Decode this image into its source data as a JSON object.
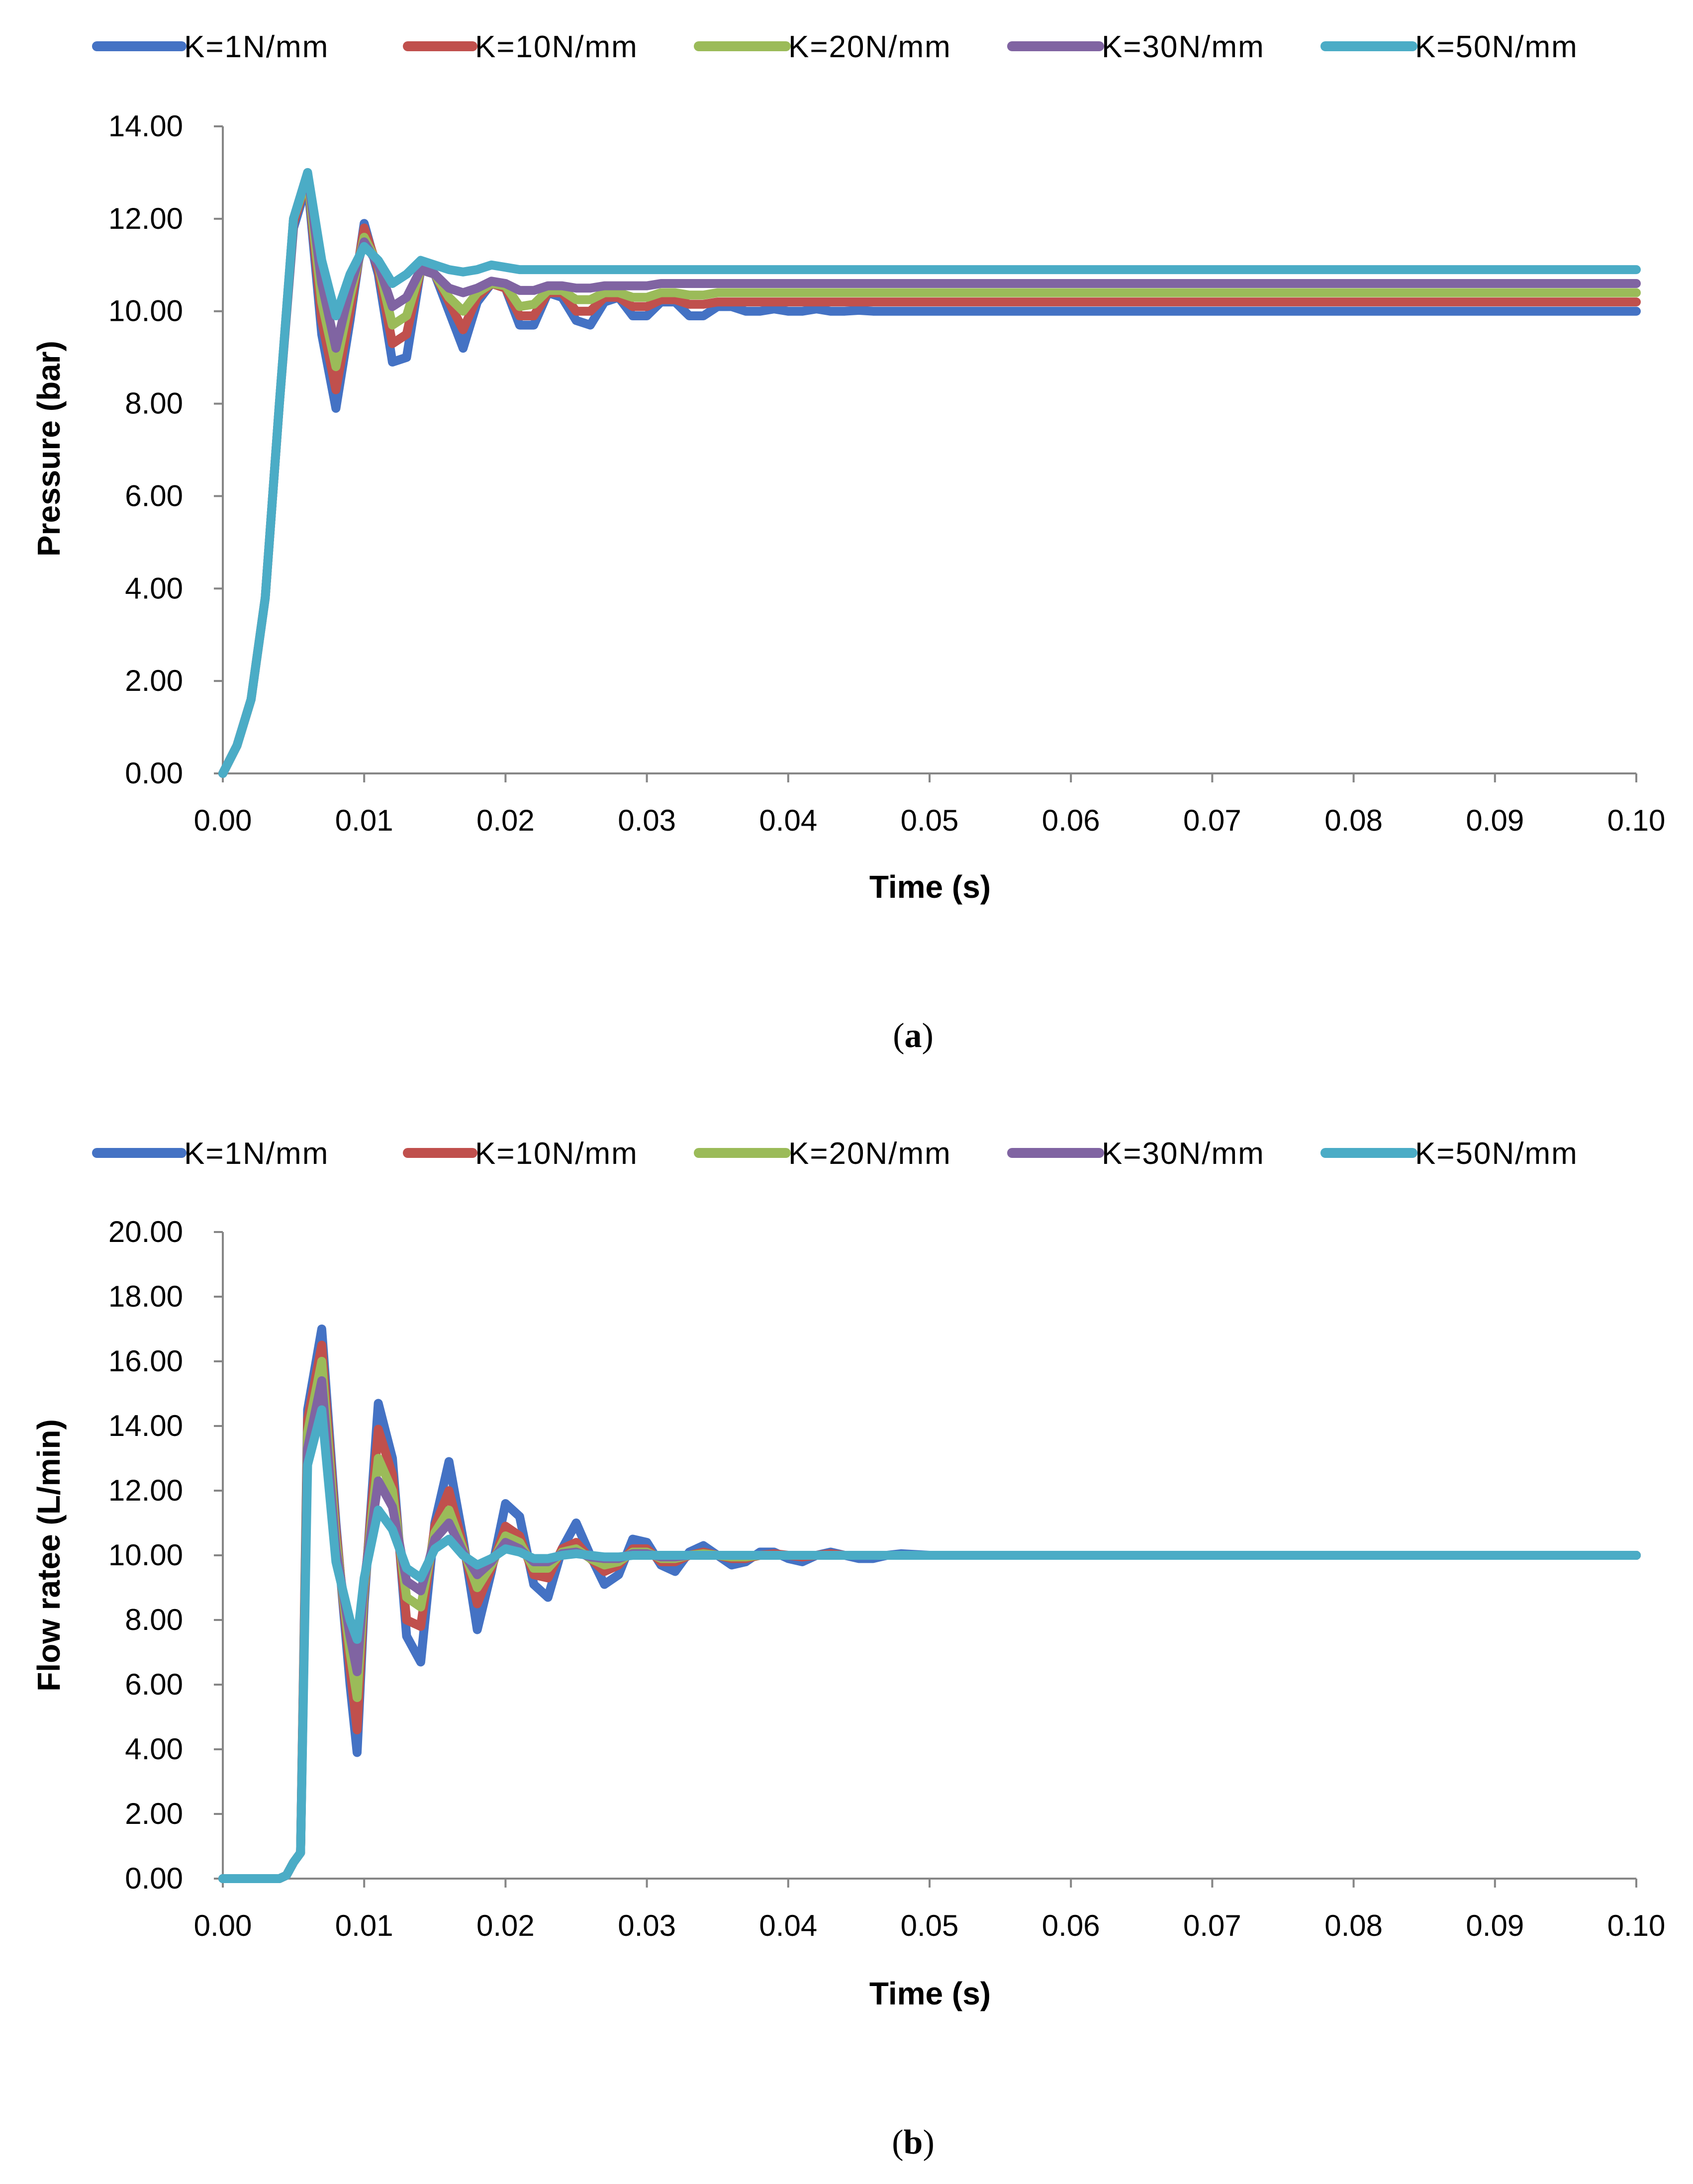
{
  "figure": {
    "panels": [
      "a",
      "b"
    ]
  },
  "colors": {
    "K1": "#4472C4",
    "K10": "#C0504D",
    "K20": "#9BBB59",
    "K30": "#8064A2",
    "K50": "#4BACC6"
  },
  "chart_data": [
    {
      "type": "line",
      "panel": "a",
      "caption": "a",
      "title": "",
      "xlabel": "Time (s)",
      "ylabel": "Pressure (bar)",
      "xlim": [
        0,
        0.1
      ],
      "ylim": [
        0,
        14
      ],
      "xticks": [
        "0.00",
        "0.01",
        "0.02",
        "0.03",
        "0.04",
        "0.05",
        "0.06",
        "0.07",
        "0.08",
        "0.09",
        "0.10"
      ],
      "yticks": [
        "0.00",
        "2.00",
        "4.00",
        "6.00",
        "8.00",
        "10.00",
        "12.00",
        "14.00"
      ],
      "legend_position": "top",
      "x": [
        0,
        0.001,
        0.002,
        0.003,
        0.004,
        0.005,
        0.006,
        0.007,
        0.008,
        0.009,
        0.01,
        0.011,
        0.012,
        0.013,
        0.014,
        0.015,
        0.016,
        0.017,
        0.018,
        0.019,
        0.02,
        0.021,
        0.022,
        0.023,
        0.024,
        0.025,
        0.026,
        0.027,
        0.028,
        0.029,
        0.03,
        0.031,
        0.032,
        0.033,
        0.034,
        0.035,
        0.036,
        0.037,
        0.038,
        0.039,
        0.04,
        0.041,
        0.042,
        0.043,
        0.044,
        0.045,
        0.046,
        0.047,
        0.048,
        0.05,
        0.06,
        0.07,
        0.08,
        0.09,
        0.1
      ],
      "series": [
        {
          "name": "K=1N/mm",
          "color_key": "K1",
          "values": [
            0,
            0.6,
            1.6,
            3.8,
            8.0,
            11.8,
            12.8,
            9.5,
            7.9,
            9.8,
            11.9,
            10.8,
            8.9,
            9.0,
            10.9,
            10.8,
            10.0,
            9.2,
            10.2,
            10.6,
            10.5,
            9.7,
            9.7,
            10.4,
            10.3,
            9.8,
            9.7,
            10.2,
            10.3,
            9.9,
            9.9,
            10.2,
            10.2,
            9.9,
            9.9,
            10.1,
            10.1,
            10.0,
            10.0,
            10.05,
            10.0,
            10.0,
            10.05,
            10.0,
            10.0,
            10.02,
            10.0,
            10.0,
            10.0,
            10.0,
            10.0,
            10.0,
            10.0,
            10.0,
            10.0
          ]
        },
        {
          "name": "K=10N/mm",
          "color_key": "K10",
          "values": [
            0,
            0.6,
            1.6,
            3.8,
            8.0,
            11.9,
            12.9,
            9.8,
            8.3,
            10.0,
            11.8,
            10.9,
            9.3,
            9.5,
            10.9,
            10.8,
            10.2,
            9.6,
            10.3,
            10.6,
            10.5,
            9.9,
            9.9,
            10.4,
            10.4,
            10.0,
            10.0,
            10.3,
            10.3,
            10.1,
            10.1,
            10.25,
            10.25,
            10.15,
            10.15,
            10.2,
            10.2,
            10.2,
            10.2,
            10.2,
            10.2,
            10.2,
            10.2,
            10.2,
            10.2,
            10.2,
            10.2,
            10.2,
            10.2,
            10.2,
            10.2,
            10.2,
            10.2,
            10.2,
            10.2
          ]
        },
        {
          "name": "K=20N/mm",
          "color_key": "K20",
          "values": [
            0,
            0.6,
            1.6,
            3.8,
            8.0,
            12.0,
            12.9,
            10.2,
            8.8,
            10.3,
            11.6,
            11.0,
            9.7,
            9.9,
            10.9,
            10.8,
            10.3,
            10.0,
            10.4,
            10.6,
            10.55,
            10.1,
            10.15,
            10.45,
            10.45,
            10.25,
            10.25,
            10.4,
            10.4,
            10.3,
            10.3,
            10.4,
            10.4,
            10.35,
            10.35,
            10.4,
            10.4,
            10.4,
            10.4,
            10.4,
            10.4,
            10.4,
            10.4,
            10.4,
            10.4,
            10.4,
            10.4,
            10.4,
            10.4,
            10.4,
            10.4,
            10.4,
            10.4,
            10.4,
            10.4
          ]
        },
        {
          "name": "K=30N/mm",
          "color_key": "K30",
          "values": [
            0,
            0.6,
            1.6,
            3.8,
            8.0,
            12.0,
            13.0,
            10.6,
            9.2,
            10.5,
            11.5,
            11.0,
            10.1,
            10.3,
            10.9,
            10.8,
            10.5,
            10.4,
            10.5,
            10.65,
            10.6,
            10.45,
            10.45,
            10.55,
            10.55,
            10.5,
            10.5,
            10.55,
            10.55,
            10.55,
            10.55,
            10.6,
            10.6,
            10.6,
            10.6,
            10.6,
            10.6,
            10.6,
            10.6,
            10.6,
            10.6,
            10.6,
            10.6,
            10.6,
            10.6,
            10.6,
            10.6,
            10.6,
            10.6,
            10.6,
            10.6,
            10.6,
            10.6,
            10.6,
            10.6
          ]
        },
        {
          "name": "K=50N/mm",
          "color_key": "K50",
          "values": [
            0,
            0.6,
            1.6,
            3.8,
            8.0,
            12.0,
            13.0,
            11.1,
            9.9,
            10.8,
            11.4,
            11.1,
            10.6,
            10.8,
            11.1,
            11.0,
            10.9,
            10.85,
            10.9,
            11.0,
            10.95,
            10.9,
            10.9,
            10.9,
            10.9,
            10.9,
            10.9,
            10.9,
            10.9,
            10.9,
            10.9,
            10.9,
            10.9,
            10.9,
            10.9,
            10.9,
            10.9,
            10.9,
            10.9,
            10.9,
            10.9,
            10.9,
            10.9,
            10.9,
            10.9,
            10.9,
            10.9,
            10.9,
            10.9,
            10.9,
            10.9,
            10.9,
            10.9,
            10.9,
            10.9
          ]
        }
      ]
    },
    {
      "type": "line",
      "panel": "b",
      "caption": "b",
      "title": "",
      "xlabel": "Time (s)",
      "ylabel": "Flow ratee (L/min)",
      "xlim": [
        0,
        0.1
      ],
      "ylim": [
        0,
        20
      ],
      "xticks": [
        "0.00",
        "0.01",
        "0.02",
        "0.03",
        "0.04",
        "0.05",
        "0.06",
        "0.07",
        "0.08",
        "0.09",
        "0.10"
      ],
      "yticks": [
        "0.00",
        "2.00",
        "4.00",
        "6.00",
        "8.00",
        "10.00",
        "12.00",
        "14.00",
        "16.00",
        "18.00",
        "20.00"
      ],
      "legend_position": "top",
      "x": [
        0,
        0.001,
        0.002,
        0.003,
        0.004,
        0.0045,
        0.005,
        0.0055,
        0.006,
        0.007,
        0.008,
        0.009,
        0.0095,
        0.01,
        0.011,
        0.012,
        0.013,
        0.014,
        0.015,
        0.016,
        0.017,
        0.018,
        0.019,
        0.02,
        0.021,
        0.022,
        0.023,
        0.024,
        0.025,
        0.026,
        0.027,
        0.028,
        0.029,
        0.03,
        0.031,
        0.032,
        0.033,
        0.034,
        0.035,
        0.036,
        0.037,
        0.038,
        0.039,
        0.04,
        0.041,
        0.042,
        0.043,
        0.044,
        0.045,
        0.046,
        0.047,
        0.048,
        0.05,
        0.06,
        0.07,
        0.08,
        0.09,
        0.1
      ],
      "series": [
        {
          "name": "K=1N/mm",
          "color_key": "K1",
          "values": [
            0,
            0,
            0,
            0,
            0,
            0.1,
            0.5,
            0.8,
            14.5,
            17.0,
            11.0,
            6.0,
            3.9,
            8.5,
            14.7,
            13.0,
            7.5,
            6.7,
            11.0,
            12.9,
            10.5,
            7.7,
            9.5,
            11.6,
            11.2,
            9.1,
            8.7,
            10.2,
            11.0,
            10.0,
            9.1,
            9.4,
            10.5,
            10.4,
            9.7,
            9.5,
            10.1,
            10.3,
            10.0,
            9.7,
            9.8,
            10.1,
            10.1,
            9.9,
            9.8,
            10.0,
            10.1,
            10.0,
            9.9,
            9.9,
            10.0,
            10.05,
            10.0,
            10.0,
            10.0,
            10.0,
            10.0,
            10.0
          ]
        },
        {
          "name": "K=10N/mm",
          "color_key": "K10",
          "values": [
            0,
            0,
            0,
            0,
            0,
            0.1,
            0.5,
            0.8,
            14.2,
            16.5,
            10.8,
            6.5,
            4.6,
            8.8,
            13.9,
            12.5,
            8.0,
            7.8,
            10.9,
            12.0,
            10.3,
            8.5,
            9.6,
            10.9,
            10.6,
            9.4,
            9.3,
            10.2,
            10.4,
            9.9,
            9.5,
            9.7,
            10.2,
            10.2,
            9.8,
            9.8,
            10.0,
            10.1,
            10.0,
            9.9,
            9.9,
            10.0,
            10.05,
            10.0,
            9.95,
            10.0,
            10.05,
            10.0,
            10.0,
            10.0,
            10.0,
            10.0,
            10.0,
            10.0,
            10.0,
            10.0,
            10.0,
            10.0
          ]
        },
        {
          "name": "K=20N/mm",
          "color_key": "K20",
          "values": [
            0,
            0,
            0,
            0,
            0,
            0.1,
            0.5,
            0.8,
            13.8,
            16.0,
            10.5,
            7.0,
            5.6,
            9.0,
            13.0,
            12.0,
            8.7,
            8.4,
            10.7,
            11.4,
            10.2,
            9.0,
            9.7,
            10.6,
            10.4,
            9.6,
            9.6,
            10.1,
            10.2,
            9.9,
            9.7,
            9.8,
            10.1,
            10.1,
            9.9,
            9.9,
            10.0,
            10.05,
            10.0,
            9.95,
            9.95,
            10.0,
            10.0,
            10.0,
            10.0,
            10.0,
            10.0,
            10.0,
            10.0,
            10.0,
            10.0,
            10.0,
            10.0,
            10.0,
            10.0,
            10.0,
            10.0,
            10.0
          ]
        },
        {
          "name": "K=30N/mm",
          "color_key": "K30",
          "values": [
            0,
            0,
            0,
            0,
            0,
            0.1,
            0.5,
            0.8,
            13.3,
            15.4,
            10.2,
            7.5,
            6.4,
            9.2,
            12.3,
            11.5,
            9.2,
            8.9,
            10.5,
            11.0,
            10.1,
            9.4,
            9.8,
            10.4,
            10.2,
            9.8,
            9.8,
            10.05,
            10.1,
            9.95,
            9.9,
            9.9,
            10.05,
            10.05,
            9.95,
            9.95,
            10.0,
            10.0,
            10.0,
            10.0,
            10.0,
            10.0,
            10.0,
            10.0,
            10.0,
            10.0,
            10.0,
            10.0,
            10.0,
            10.0,
            10.0,
            10.0,
            10.0,
            10.0,
            10.0,
            10.0,
            10.0,
            10.0
          ]
        },
        {
          "name": "K=50N/mm",
          "color_key": "K50",
          "values": [
            0,
            0,
            0,
            0,
            0,
            0.1,
            0.5,
            0.8,
            12.8,
            14.5,
            9.8,
            8.0,
            7.4,
            9.3,
            11.4,
            10.8,
            9.6,
            9.3,
            10.2,
            10.5,
            10.0,
            9.7,
            9.9,
            10.2,
            10.1,
            9.9,
            9.9,
            10.0,
            10.05,
            10.0,
            9.95,
            9.95,
            10.0,
            10.0,
            10.0,
            10.0,
            10.0,
            10.0,
            10.0,
            10.0,
            10.0,
            10.0,
            10.0,
            10.0,
            10.0,
            10.0,
            10.0,
            10.0,
            10.0,
            10.0,
            10.0,
            10.0,
            10.0,
            10.0,
            10.0,
            10.0,
            10.0,
            10.0
          ]
        }
      ]
    }
  ]
}
